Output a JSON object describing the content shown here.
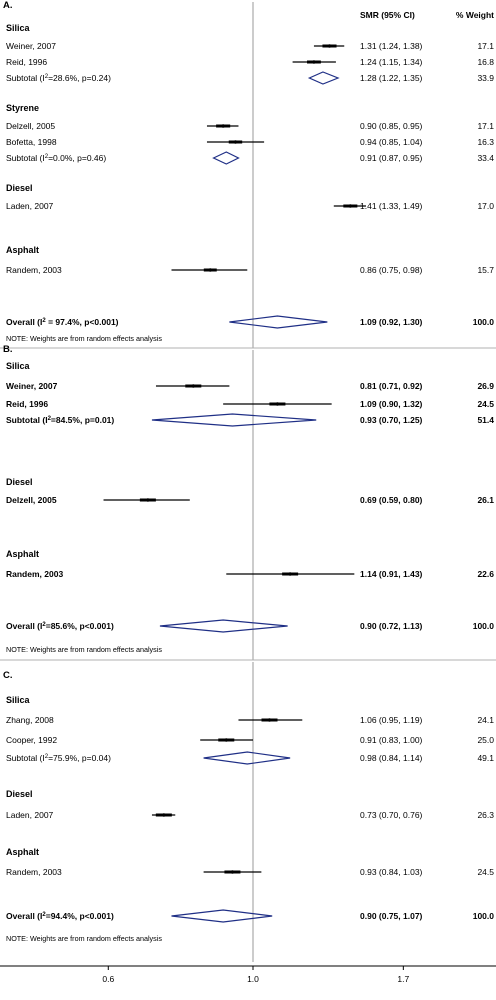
{
  "chart_data": {
    "type": "forest",
    "x_axis": {
      "scale": "log",
      "ticks": [
        0.6,
        1.0,
        1.7
      ],
      "tick_labels": [
        "0.6",
        "1.0",
        "1.7"
      ],
      "reference_line": 1.0
    },
    "column_headers": {
      "estimate": "SMR (95% CI)",
      "weight": "% Weight"
    },
    "panels": [
      {
        "label": "A.",
        "rows": [
          {
            "kind": "group",
            "label": "Silica"
          },
          {
            "kind": "study",
            "label": "Weiner, 2007",
            "est": 1.31,
            "lo": 1.24,
            "hi": 1.38,
            "ci_text": "1.31 (1.24, 1.38)",
            "weight": "17.1",
            "bold": false
          },
          {
            "kind": "study",
            "label": "Reid, 1996",
            "est": 1.24,
            "lo": 1.15,
            "hi": 1.34,
            "ci_text": "1.24 (1.15, 1.34)",
            "weight": "16.8",
            "bold": false
          },
          {
            "kind": "subtotal",
            "label": "Subtotal (I",
            "i2": "=28.6%, p=0.24)",
            "est": 1.28,
            "lo": 1.22,
            "hi": 1.35,
            "ci_text": "1.28 (1.22, 1.35)",
            "weight": "33.9",
            "bold": false
          },
          {
            "kind": "group",
            "label": "Styrene"
          },
          {
            "kind": "study",
            "label": "Delzell, 2005",
            "est": 0.9,
            "lo": 0.85,
            "hi": 0.95,
            "ci_text": "0.90 (0.85, 0.95)",
            "weight": "17.1",
            "bold": false
          },
          {
            "kind": "study",
            "label": "Bofetta, 1998",
            "est": 0.94,
            "lo": 0.85,
            "hi": 1.04,
            "ci_text": "0.94 (0.85, 1.04)",
            "weight": "16.3",
            "bold": false
          },
          {
            "kind": "subtotal",
            "label": "Subtotal (I",
            "i2": "=0.0%, p=0.46)",
            "est": 0.91,
            "lo": 0.87,
            "hi": 0.95,
            "ci_text": "0.91 (0.87, 0.95)",
            "weight": "33.4",
            "bold": false
          },
          {
            "kind": "group",
            "label": "Diesel"
          },
          {
            "kind": "study",
            "label": "Laden, 2007",
            "est": 1.41,
            "lo": 1.33,
            "hi": 1.49,
            "ci_text": "1.41 (1.33, 1.49)",
            "weight": "17.0",
            "bold": false
          },
          {
            "kind": "group",
            "label": "Asphalt"
          },
          {
            "kind": "study",
            "label": "Randem, 2003",
            "est": 0.86,
            "lo": 0.75,
            "hi": 0.98,
            "ci_text": "0.86 (0.75, 0.98)",
            "weight": "15.7",
            "bold": false
          },
          {
            "kind": "overall",
            "label": "Overall (I",
            "i2": " = 97.4%, p<0.001)",
            "est": 1.09,
            "lo": 0.92,
            "hi": 1.3,
            "ci_text": "1.09 (0.92, 1.30)",
            "weight": "100.0",
            "bold": true
          }
        ],
        "note": "NOTE: Weights are from random effects analysis"
      },
      {
        "label": "B.",
        "rows": [
          {
            "kind": "group",
            "label": "Silica"
          },
          {
            "kind": "study",
            "label": "Weiner, 2007",
            "est": 0.81,
            "lo": 0.71,
            "hi": 0.92,
            "ci_text": "0.81 (0.71, 0.92)",
            "weight": "26.9",
            "bold": true
          },
          {
            "kind": "study",
            "label": "Reid, 1996",
            "est": 1.09,
            "lo": 0.9,
            "hi": 1.32,
            "ci_text": "1.09 (0.90, 1.32)",
            "weight": "24.5",
            "bold": true
          },
          {
            "kind": "subtotal",
            "label": "Subtotal (I",
            "i2": "=84.5%, p=0.01)",
            "est": 0.93,
            "lo": 0.7,
            "hi": 1.25,
            "ci_text": "0.93 (0.70, 1.25)",
            "weight": "51.4",
            "bold": true
          },
          {
            "kind": "group",
            "label": "Diesel"
          },
          {
            "kind": "study",
            "label": "Delzell, 2005",
            "est": 0.69,
            "lo": 0.59,
            "hi": 0.8,
            "ci_text": "0.69 (0.59, 0.80)",
            "weight": "26.1",
            "bold": true
          },
          {
            "kind": "group",
            "label": "Asphalt"
          },
          {
            "kind": "study",
            "label": "Randem, 2003",
            "est": 1.14,
            "lo": 0.91,
            "hi": 1.43,
            "ci_text": "1.14 (0.91, 1.43)",
            "weight": "22.6",
            "bold": true
          },
          {
            "kind": "overall",
            "label": "Overall (I",
            "i2": "=85.6%, p<0.001)",
            "est": 0.9,
            "lo": 0.72,
            "hi": 1.13,
            "ci_text": "0.90 (0.72, 1.13)",
            "weight": "100.0",
            "bold": true
          }
        ],
        "note": "NOTE: Weights are from random effects analysis"
      },
      {
        "label": "C.",
        "rows": [
          {
            "kind": "group",
            "label": "Silica"
          },
          {
            "kind": "study",
            "label": "Zhang, 2008",
            "est": 1.06,
            "lo": 0.95,
            "hi": 1.19,
            "ci_text": "1.06 (0.95, 1.19)",
            "weight": "24.1",
            "bold": false
          },
          {
            "kind": "study",
            "label": "Cooper, 1992",
            "est": 0.91,
            "lo": 0.83,
            "hi": 1.0,
            "ci_text": "0.91 (0.83, 1.00)",
            "weight": "25.0",
            "bold": false
          },
          {
            "kind": "subtotal",
            "label": "Subtotal (I",
            "i2": "=75.9%, p=0.04)",
            "est": 0.98,
            "lo": 0.84,
            "hi": 1.14,
            "ci_text": "0.98 (0.84, 1.14)",
            "weight": "49.1",
            "bold": false
          },
          {
            "kind": "group",
            "label": "Diesel"
          },
          {
            "kind": "study",
            "label": "Laden, 2007",
            "est": 0.73,
            "lo": 0.7,
            "hi": 0.76,
            "ci_text": "0.73 (0.70, 0.76)",
            "weight": "26.3",
            "bold": false
          },
          {
            "kind": "group",
            "label": "Asphalt"
          },
          {
            "kind": "study",
            "label": "Randem, 2003",
            "est": 0.93,
            "lo": 0.84,
            "hi": 1.03,
            "ci_text": "0.93 (0.84, 1.03)",
            "weight": "24.5",
            "bold": false
          },
          {
            "kind": "overall",
            "label": "Overall (I",
            "i2": "=94.4%, p<0.001)",
            "est": 0.9,
            "lo": 0.75,
            "hi": 1.07,
            "ci_text": "0.90 (0.75, 1.07)",
            "weight": "100.0",
            "bold": true
          }
        ],
        "note": "NOTE: Weights are from random effects analysis"
      }
    ]
  },
  "colors": {
    "diamond": "#1f2f86",
    "line": "#000000",
    "reference": "#9a9a9a",
    "divider": "#b0b0b0"
  }
}
